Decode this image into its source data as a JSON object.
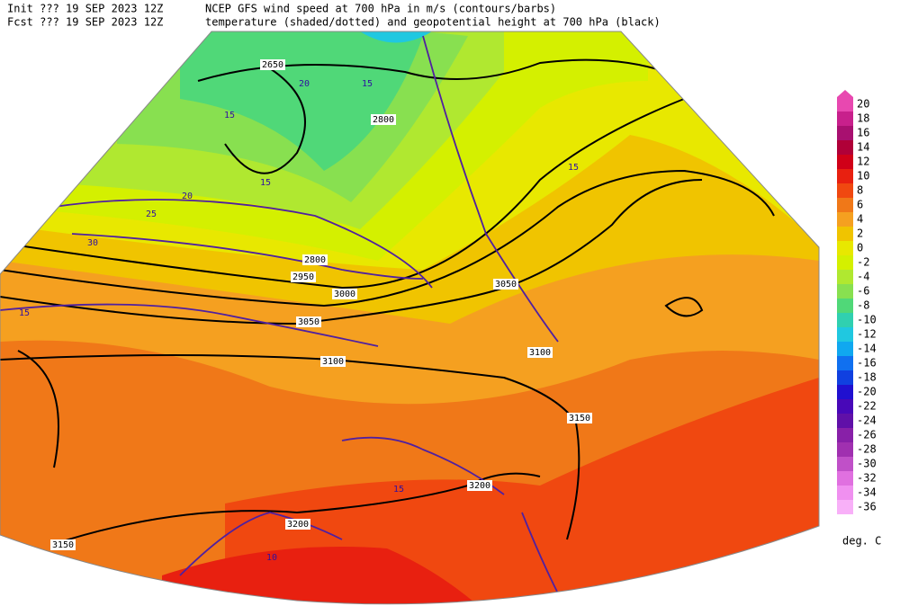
{
  "header": {
    "init": "Init  ??? 19 SEP 2023 12Z",
    "fcst": "Fcst ??? 19 SEP 2023 12Z",
    "title_line1": "NCEP GFS wind speed at 700 hPa in m/s (contours/barbs)",
    "title_line2": "temperature (shaded/dotted) and geopotential height at 700 hPa (black)"
  },
  "colorbar": {
    "unit": "deg. C",
    "levels": [
      {
        "value": 20,
        "color": "#e848b0"
      },
      {
        "value": 18,
        "color": "#c8208c"
      },
      {
        "value": 16,
        "color": "#a81070"
      },
      {
        "value": 14,
        "color": "#b00038"
      },
      {
        "value": 12,
        "color": "#d00018"
      },
      {
        "value": 10,
        "color": "#e82010"
      },
      {
        "value": 8,
        "color": "#f04810"
      },
      {
        "value": 6,
        "color": "#f07818"
      },
      {
        "value": 4,
        "color": "#f5a020"
      },
      {
        "value": 2,
        "color": "#f0c400"
      },
      {
        "value": 0,
        "color": "#e8e800"
      },
      {
        "value": -2,
        "color": "#d4f000"
      },
      {
        "value": -4,
        "color": "#b0e830"
      },
      {
        "value": -6,
        "color": "#88e050"
      },
      {
        "value": -8,
        "color": "#50d878"
      },
      {
        "value": -10,
        "color": "#30d0b0"
      },
      {
        "value": -12,
        "color": "#20c8e0"
      },
      {
        "value": -14,
        "color": "#10a8f0"
      },
      {
        "value": -16,
        "color": "#1070f0"
      },
      {
        "value": -18,
        "color": "#1040e0"
      },
      {
        "value": -20,
        "color": "#2010d0"
      },
      {
        "value": -22,
        "color": "#4808b8"
      },
      {
        "value": -24,
        "color": "#6010a8"
      },
      {
        "value": -26,
        "color": "#8820a8"
      },
      {
        "value": -28,
        "color": "#a030b0"
      },
      {
        "value": -30,
        "color": "#c050c8"
      },
      {
        "value": -32,
        "color": "#e070e0"
      },
      {
        "value": -34,
        "color": "#f090f0"
      },
      {
        "value": -36,
        "color": "#f8b0f8"
      }
    ]
  },
  "height_contour_labels": [
    "2650",
    "2800",
    "2800",
    "2950",
    "3000",
    "3050",
    "3050",
    "3100",
    "3100",
    "3150",
    "3200",
    "3200",
    "3150"
  ],
  "wind_contour_labels": [
    "15",
    "20",
    "25",
    "30",
    "15",
    "20",
    "15",
    "15",
    "15",
    "10",
    "15"
  ]
}
